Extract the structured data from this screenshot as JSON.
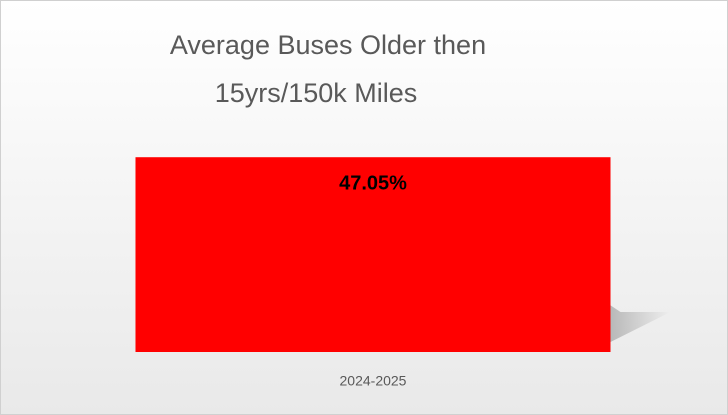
{
  "chart_data": {
    "type": "bar",
    "title": [
      "Average Buses Older then",
      "15yrs/150k Miles"
    ],
    "categories": [
      "2024-2025"
    ],
    "values": [
      47.05
    ],
    "value_labels": [
      "47.05%"
    ],
    "color": "#ff0000",
    "ylim": [
      0,
      50
    ]
  }
}
